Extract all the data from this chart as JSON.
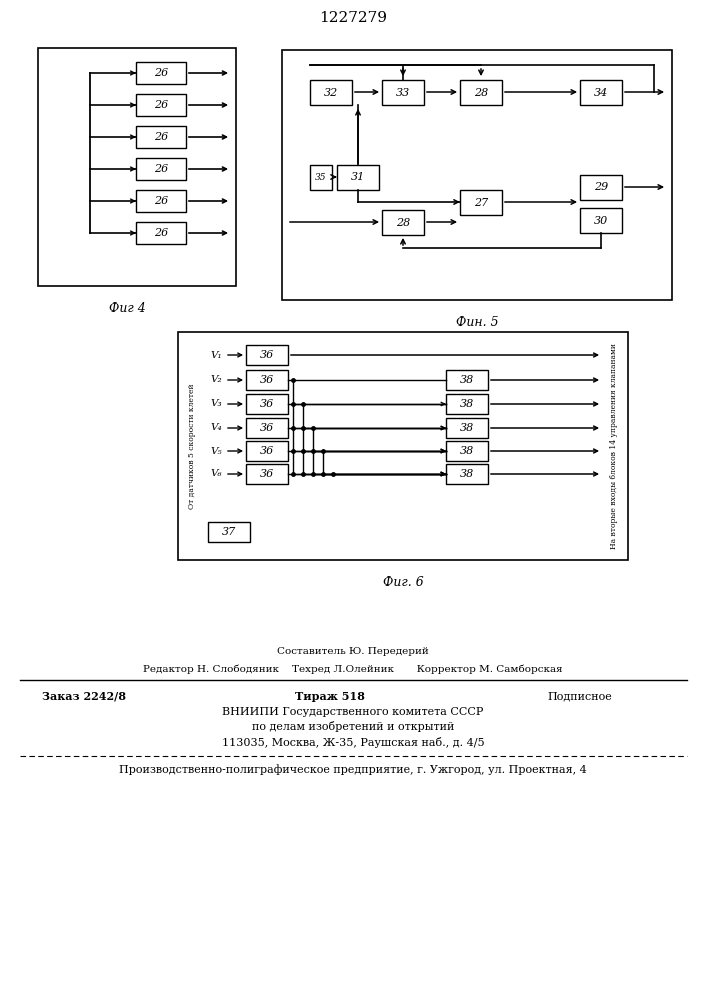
{
  "title": "1227279",
  "fig4_label": "Фиг 4",
  "fig5_label": "Фин. 5",
  "fig6_label": "Фиг. 6",
  "background": "#ffffff"
}
